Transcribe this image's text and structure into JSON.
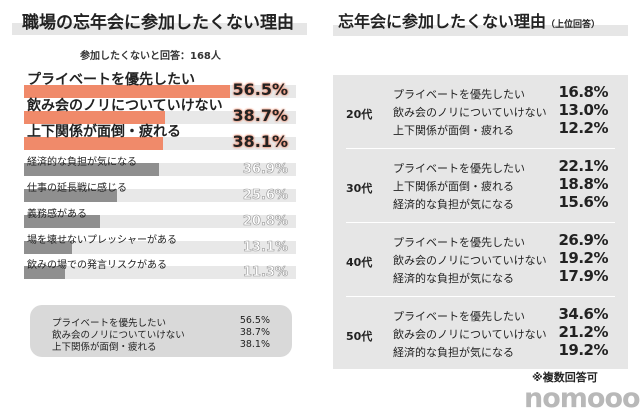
{
  "left": {
    "title": "職場の忘年会に参加したくない理由",
    "subtitle": "参加したくないと回答：168人",
    "summary": [
      {
        "label": "プライベートを優先したい",
        "value": "56.5%"
      },
      {
        "label": "飲み会のノリについていけない",
        "value": "38.7%"
      },
      {
        "label": "上下関係が面倒・疲れる",
        "value": "38.1%"
      }
    ]
  },
  "right": {
    "title": "忘年会に参加したくない理由",
    "title_note": "（上位回答）",
    "footnote": "※複数回答可",
    "groups": [
      {
        "age": "20代",
        "items": [
          {
            "label": "プライベートを優先したい",
            "value": "16.8%"
          },
          {
            "label": "飲み会のノリについていけない",
            "value": "13.0%"
          },
          {
            "label": "上下関係が面倒・疲れる",
            "value": "12.2%"
          }
        ]
      },
      {
        "age": "30代",
        "items": [
          {
            "label": "プライベートを優先したい",
            "value": "22.1%"
          },
          {
            "label": "上下関係が面倒・疲れる",
            "value": "18.8%"
          },
          {
            "label": "経済的な負担が気になる",
            "value": "15.6%"
          }
        ]
      },
      {
        "age": "40代",
        "items": [
          {
            "label": "プライベートを優先したい",
            "value": "26.9%"
          },
          {
            "label": "飲み会のノリについていけない",
            "value": "19.2%"
          },
          {
            "label": "経済的な負担が気になる",
            "value": "17.9%"
          }
        ]
      },
      {
        "age": "50代",
        "items": [
          {
            "label": "プライベートを優先したい",
            "value": "34.6%"
          },
          {
            "label": "飲み会のノリについていけない",
            "value": "21.2%"
          },
          {
            "label": "経済的な負担が気になる",
            "value": "19.2%"
          }
        ]
      }
    ]
  },
  "logo": "nomooo",
  "colors": {
    "highlight": "#f08a6a",
    "muted": "#8f8f8f",
    "track": "#e8e8e8"
  },
  "chart_data": {
    "type": "bar",
    "orientation": "horizontal",
    "title": "職場の忘年会に参加したくない理由",
    "subtitle": "参加したくないと回答：168人",
    "categories": [
      "プライベートを優先したい",
      "飲み会のノリについていけない",
      "上下関係が面倒・疲れる",
      "経済的な負担が気になる",
      "仕事の延長戦に感じる",
      "義務感がある",
      "場を壊せないプレッシャーがある",
      "飲みの場での発言リスクがある"
    ],
    "values": [
      56.5,
      38.7,
      38.1,
      36.9,
      25.6,
      20.8,
      13.1,
      11.3
    ],
    "labels": [
      "56.5%",
      "38.7%",
      "38.1%",
      "36.9%",
      "25.6%",
      "20.8%",
      "13.1%",
      "11.3%"
    ],
    "highlighted_top": 3
  }
}
